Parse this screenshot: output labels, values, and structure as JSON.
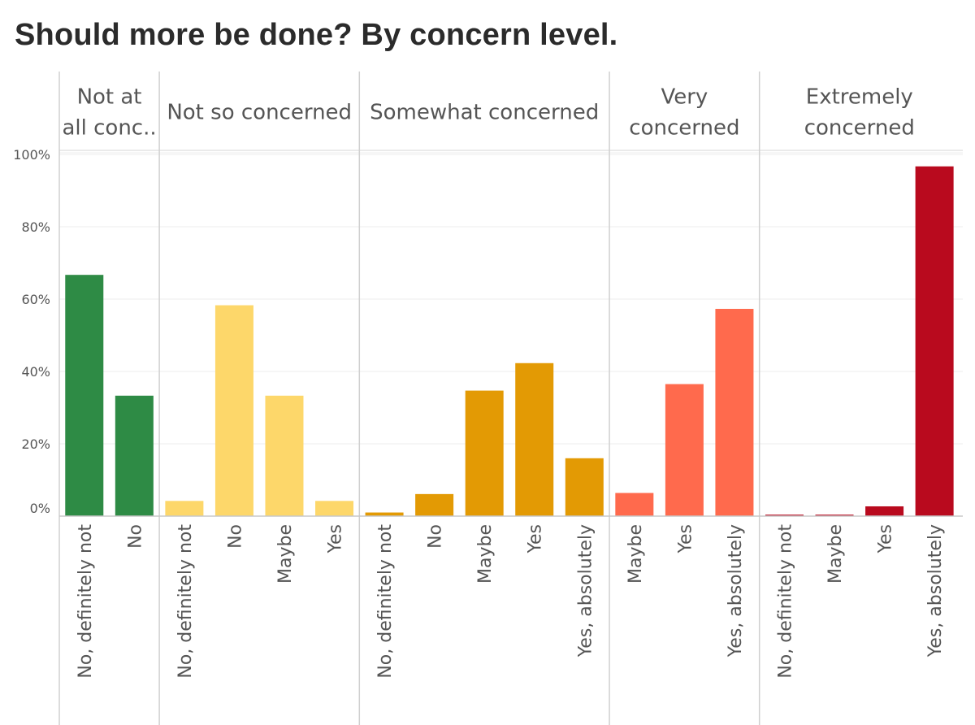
{
  "chart_data": {
    "type": "bar",
    "title": "Should more be done? By concern level.",
    "xlabel": "",
    "ylabel": "",
    "ylim": [
      0,
      100
    ],
    "y_ticks": [
      "0%",
      "20%",
      "40%",
      "60%",
      "80%",
      "100%"
    ],
    "grid": true,
    "legend": "none",
    "panels": [
      {
        "header_lines": [
          "Not at",
          "all conc.."
        ],
        "color": "#2e8b45",
        "categories": [
          "No, definitely not",
          "No"
        ],
        "values": [
          66.7,
          33.3
        ]
      },
      {
        "header_lines": [
          "Not so concerned"
        ],
        "color": "#fdd76a",
        "categories": [
          "No, definitely not",
          "No",
          "Maybe",
          "Yes"
        ],
        "values": [
          4.2,
          58.3,
          33.3,
          4.2
        ]
      },
      {
        "header_lines": [
          "Somewhat concerned"
        ],
        "color": "#e39a04",
        "categories": [
          "No, definitely not",
          "No",
          "Maybe",
          "Yes",
          "Yes, absolutely"
        ],
        "values": [
          1.0,
          6.1,
          34.7,
          42.3,
          16.0
        ]
      },
      {
        "header_lines": [
          "Very",
          "concerned"
        ],
        "color": "#ff6a4d",
        "categories": [
          "Maybe",
          "Yes",
          "Yes, absolutely"
        ],
        "values": [
          6.4,
          36.5,
          57.3
        ]
      },
      {
        "header_lines": [
          "Extremely",
          "concerned"
        ],
        "color": "#b90a1e",
        "categories": [
          "No, definitely not",
          "Maybe",
          "Yes",
          "Yes, absolutely"
        ],
        "values": [
          0.4,
          0.4,
          2.7,
          96.7
        ]
      }
    ]
  }
}
